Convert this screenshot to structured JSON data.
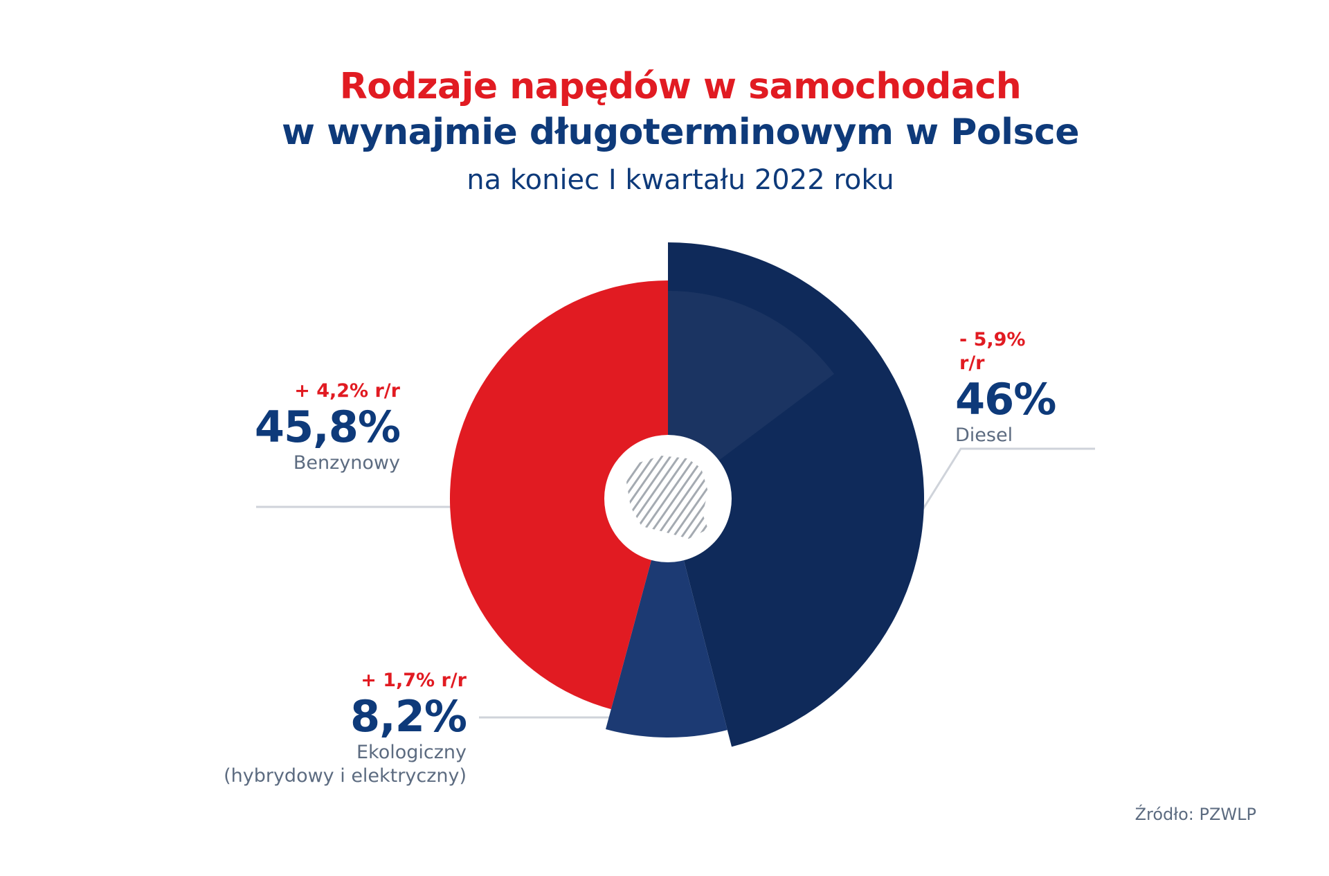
{
  "colors": {
    "red": "#e11b22",
    "navy": "#0e3a7a",
    "dark_navy": "#0f2a5a",
    "eco_blue": "#1c3a73",
    "grey_text": "#5c6b80",
    "guide_line": "#cfd3da"
  },
  "title": {
    "line1": "Rodzaje napędów w samochodach",
    "line2": "w wynajmie długoterminowym w Polsce",
    "line3": "na koniec I kwartału 2022 roku"
  },
  "source": "Źródło: PZWLP",
  "center_icon": "poland-map-icon",
  "chart_data": {
    "type": "pie",
    "title": "Rodzaje napędów w samochodach w wynajmie długoterminowym w Polsce",
    "subtitle": "na koniec I kwartału 2022 roku",
    "slices": [
      {
        "label": "Diesel",
        "value": 46,
        "value_label": "46%",
        "change": "- 5,9% r/r",
        "color": "#0f2a5a"
      },
      {
        "label": "Ekologiczny",
        "label_note": "(hybrydowy i elektryczny)",
        "value": 8.2,
        "value_label": "8,2%",
        "change": "+ 1,7% r/r",
        "color": "#1c3a73"
      },
      {
        "label": "Benzynowy",
        "value": 45.8,
        "value_label": "45,8%",
        "change": "+ 4,2% r/r",
        "color": "#e11b22"
      }
    ]
  }
}
